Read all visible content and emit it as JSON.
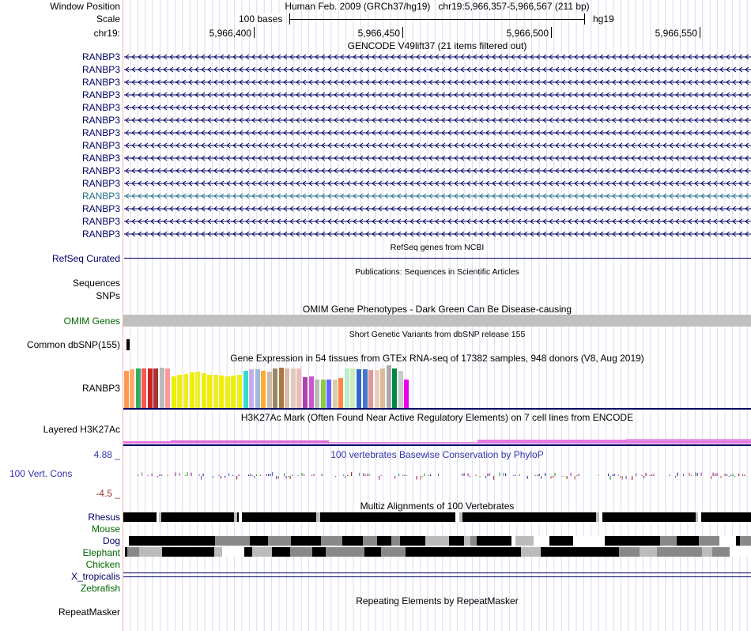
{
  "header": {
    "window_position_label": "Window Position",
    "window_position_value": "Human Feb. 2009 (GRCh37/hg19)   chr19:5,966,357-5,966,567 (211 bp)",
    "scale_label": "Scale",
    "scale_value": "100 bases",
    "scale_assembly": "hg19",
    "chrom_label": "chr19:",
    "ruler_ticks": [
      "5,966,400",
      "5,966,450",
      "5,966,500",
      "5,966,550"
    ]
  },
  "gencode": {
    "title": "GENCODE V49lift37 (21 items filtered out)",
    "transcripts": [
      "RANBP3",
      "RANBP3",
      "RANBP3",
      "RANBP3",
      "RANBP3",
      "RANBP3",
      "RANBP3",
      "RANBP3",
      "RANBP3",
      "RANBP3",
      "RANBP3",
      "RANBP3",
      "RANBP3",
      "RANBP3",
      "RANBP3"
    ],
    "highlighted_index": 11
  },
  "refseq": {
    "title": "RefSeq genes from NCBI",
    "label": "RefSeq Curated"
  },
  "publications": {
    "title": "Publications: Sequences in Scientific Articles",
    "label1": "Sequences",
    "label2": "SNPs"
  },
  "omim": {
    "title": "OMIM Gene Phenotypes - Dark Green Can Be Disease-causing",
    "label": "OMIM Genes"
  },
  "dbsnp": {
    "title": "Short Genetic Variants from dbSNP release 155",
    "label": "Common dbSNP(155)"
  },
  "gtex": {
    "title": "Gene Expression in 54 tissues from GTEx RNA-seq of 17382 samples, 948 donors (V8, Aug 2019)",
    "label": "RANBP3"
  },
  "h3k27ac": {
    "title": "H3K27Ac Mark (Often Found Near Active Regulatory Elements) on 7 cell lines from ENCODE",
    "label": "Layered H3K27Ac"
  },
  "phylop": {
    "title": "100 vertebrates Basewise Conservation by PhyloP",
    "label": "100 Vert. Cons",
    "max": "4.88 _",
    "min": "-4.5 _"
  },
  "multiz": {
    "title": "Multiz Alignments of 100 Vertebrates",
    "species": [
      "Rhesus",
      "Mouse",
      "Dog",
      "Elephant",
      "Chicken",
      "X_tropicalis",
      "Zebrafish"
    ]
  },
  "repeatmasker": {
    "title": "Repeating Elements by RepeatMasker",
    "label": "RepeatMasker"
  },
  "colors": {
    "navy": "#000066",
    "green": "#006600",
    "omim_gray": "#c0c0c0",
    "h3k27ac_pink": "#e060d0"
  }
}
